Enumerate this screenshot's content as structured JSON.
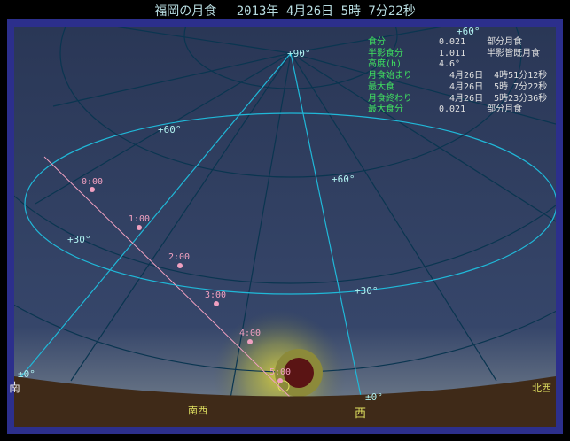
{
  "title": "福岡の月食　 2013年 4月26日 5時 7分22秒",
  "info": [
    {
      "label": "食分",
      "value": "0.021    部分月食"
    },
    {
      "label": "半影食分",
      "value": "1.011    半影皆既月食"
    },
    {
      "label": "高度(h)",
      "value": "4.6°"
    },
    {
      "label": "月食始まり",
      "value": "  4月26日  4時51分12秒"
    },
    {
      "label": "最大食",
      "value": "  4月26日  5時 7分22秒"
    },
    {
      "label": "月食終わり",
      "value": "  4月26日  5時23分36秒"
    },
    {
      "label": "最大食分",
      "value": "0.021    部分月食"
    }
  ],
  "altitude_labels": [
    "+90°",
    "+60°",
    "+60°",
    "+60°",
    "+30°",
    "+30°",
    "±0°",
    "±0°"
  ],
  "hour_labels": [
    "0:00",
    "1:00",
    "2:00",
    "3:00",
    "4:00",
    "5:00"
  ],
  "directions": {
    "south": "南",
    "southwest": "南西",
    "west": "西",
    "northwest": "北西"
  },
  "colors": {
    "sky": "#2e3d5e",
    "ground": "#3f2a18",
    "grid": "#0a3550",
    "grid_main": "#20b8d8",
    "track": "#f0a0c0",
    "moon": "#5a1414",
    "text_info": "#40e060"
  }
}
